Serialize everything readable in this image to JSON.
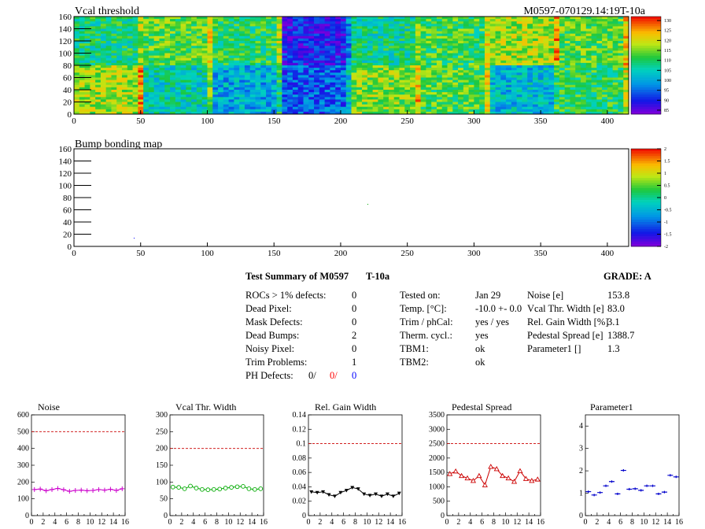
{
  "header": {
    "title_left": "Vcal threshold",
    "title_right": "M0597-070129.14:19T-10a"
  },
  "map1": {
    "title": "Vcal threshold",
    "x_ticks": [
      "0",
      "50",
      "100",
      "150",
      "200",
      "250",
      "300",
      "350",
      "400"
    ],
    "y_ticks": [
      "0",
      "20",
      "40",
      "60",
      "80",
      "100",
      "120",
      "140",
      "160"
    ],
    "colorbar_ticks": [
      "130",
      "125",
      "120",
      "115",
      "110",
      "105",
      "100",
      "95",
      "90",
      "85"
    ],
    "xlim": [
      0,
      416
    ],
    "ylim": [
      0,
      160
    ],
    "zlim": [
      83,
      132
    ]
  },
  "map2": {
    "title": "Bump bonding map",
    "x_ticks": [
      "0",
      "50",
      "100",
      "150",
      "200",
      "250",
      "300",
      "350",
      "400"
    ],
    "y_ticks": [
      "0",
      "20",
      "40",
      "60",
      "80",
      "100",
      "120",
      "140",
      "160"
    ],
    "colorbar_ticks": [
      "2",
      "1.5",
      "1",
      "0.5",
      "0",
      "-0.5",
      "-1",
      "-1.5",
      "-2"
    ],
    "xlim": [
      0,
      416
    ],
    "ylim": [
      0,
      160
    ],
    "zlim": [
      -2,
      2
    ]
  },
  "summary": {
    "title": "Test Summary of M0597",
    "test_name": "T-10a",
    "grade_label": "GRADE:  A",
    "defects": [
      {
        "label": "ROCs > 1% defects:",
        "value": "0"
      },
      {
        "label": "Dead Pixel:",
        "value": "0"
      },
      {
        "label": "Mask Defects:",
        "value": "0"
      },
      {
        "label": "Dead Bumps:",
        "value": "2"
      },
      {
        "label": "Noisy Pixel:",
        "value": "0"
      },
      {
        "label": "Trim Problems:",
        "value": "1"
      }
    ],
    "ph_defects": {
      "label": "PH Defects:",
      "v1": "0/",
      "v2": "0/",
      "v3": "0",
      "c2": "#ff0000",
      "c3": "#0000ff"
    },
    "conditions": [
      {
        "label": "Tested on:",
        "value": "Jan 29"
      },
      {
        "label": "Temp. [°C]:",
        "value": "-10.0 +- 0.0"
      },
      {
        "label": "Trim / phCal:",
        "value": "yes / yes"
      },
      {
        "label": "Therm. cycl.:",
        "value": "yes"
      },
      {
        "label": "TBM1:",
        "value": "ok"
      },
      {
        "label": "TBM2:",
        "value": "ok"
      }
    ],
    "results": [
      {
        "label": "Noise [e]",
        "value": "153.8"
      },
      {
        "label": "Vcal Thr. Width [e]",
        "value": "83.0"
      },
      {
        "label": "Rel. Gain Width [%]",
        "value": "3.1"
      },
      {
        "label": "Pedestal Spread [e]",
        "value": "1388.7"
      },
      {
        "label": "Parameter1 []",
        "value": "1.3"
      }
    ]
  },
  "chart_data": [
    {
      "type": "line",
      "title": "Noise",
      "color": "#cc00cc",
      "marker": "plus",
      "x": [
        0,
        1,
        2,
        3,
        4,
        5,
        6,
        7,
        8,
        9,
        10,
        11,
        12,
        13,
        14,
        15
      ],
      "values": [
        155,
        158,
        148,
        155,
        162,
        154,
        145,
        150,
        152,
        148,
        150,
        155,
        152,
        157,
        150,
        160
      ],
      "xlim": [
        0,
        16
      ],
      "ylim": [
        0,
        600
      ],
      "y_ticks": [
        "0",
        "100",
        "200",
        "300",
        "400",
        "500",
        "600"
      ],
      "x_ticks": [
        "0",
        "2",
        "4",
        "6",
        "8",
        "10",
        "12",
        "14",
        "16"
      ],
      "limit": 500
    },
    {
      "type": "line",
      "title": "Vcal Thr. Width",
      "color": "#00aa00",
      "marker": "circle",
      "x": [
        0,
        1,
        2,
        3,
        4,
        5,
        6,
        7,
        8,
        9,
        10,
        11,
        12,
        13,
        14,
        15
      ],
      "values": [
        85,
        84,
        80,
        88,
        82,
        78,
        77,
        78,
        79,
        82,
        84,
        86,
        87,
        80,
        78,
        80
      ],
      "xlim": [
        0,
        16
      ],
      "ylim": [
        0,
        300
      ],
      "y_ticks": [
        "0",
        "50",
        "100",
        "150",
        "200",
        "250",
        "300"
      ],
      "x_ticks": [
        "0",
        "2",
        "4",
        "6",
        "8",
        "10",
        "12",
        "14",
        "16"
      ],
      "limit": 200
    },
    {
      "type": "line",
      "title": "Rel. Gain Width",
      "color": "#000000",
      "marker": "triangle-down",
      "x": [
        0,
        1,
        2,
        3,
        4,
        5,
        6,
        7,
        8,
        9,
        10,
        11,
        12,
        13,
        14,
        15
      ],
      "values": [
        0.033,
        0.032,
        0.033,
        0.029,
        0.027,
        0.032,
        0.035,
        0.039,
        0.037,
        0.03,
        0.028,
        0.03,
        0.027,
        0.03,
        0.027,
        0.031
      ],
      "xlim": [
        0,
        16
      ],
      "ylim": [
        0,
        0.14
      ],
      "y_ticks": [
        "0",
        "0.02",
        "0.04",
        "0.06",
        "0.08",
        "0.1",
        "0.12",
        "0.14"
      ],
      "x_ticks": [
        "0",
        "2",
        "4",
        "6",
        "8",
        "10",
        "12",
        "14",
        "16"
      ],
      "limit": 0.1
    },
    {
      "type": "line",
      "title": "Pedestal Spread",
      "color": "#cc0000",
      "marker": "triangle-up",
      "x": [
        0,
        1,
        2,
        3,
        4,
        5,
        6,
        7,
        8,
        9,
        10,
        11,
        12,
        13,
        14,
        15
      ],
      "values": [
        1450,
        1540,
        1380,
        1300,
        1210,
        1380,
        1060,
        1700,
        1620,
        1380,
        1300,
        1180,
        1550,
        1280,
        1210,
        1260
      ],
      "xlim": [
        0,
        16
      ],
      "ylim": [
        0,
        3500
      ],
      "y_ticks": [
        "0",
        "500",
        "1000",
        "1500",
        "2000",
        "2500",
        "3000",
        "3500"
      ],
      "x_ticks": [
        "0",
        "2",
        "4",
        "6",
        "8",
        "10",
        "12",
        "14",
        "16"
      ],
      "limit": 2500
    },
    {
      "type": "scatter",
      "title": "Parameter1",
      "color": "#0000cc",
      "marker": "hbar",
      "x": [
        0,
        1,
        2,
        3,
        4,
        5,
        6,
        7,
        8,
        9,
        10,
        11,
        12,
        13,
        14,
        15
      ],
      "values": [
        1.07,
        0.92,
        1.03,
        1.33,
        1.52,
        0.97,
        2.02,
        1.18,
        1.2,
        1.13,
        1.33,
        1.33,
        0.97,
        1.05,
        1.8,
        1.73
      ],
      "xlim": [
        0,
        16
      ],
      "ylim": [
        0,
        4.5
      ],
      "y_ticks": [
        "0",
        "1",
        "2",
        "3",
        "4"
      ],
      "x_ticks": [
        "0",
        "2",
        "4",
        "6",
        "8",
        "10",
        "12",
        "14",
        "16"
      ]
    }
  ]
}
